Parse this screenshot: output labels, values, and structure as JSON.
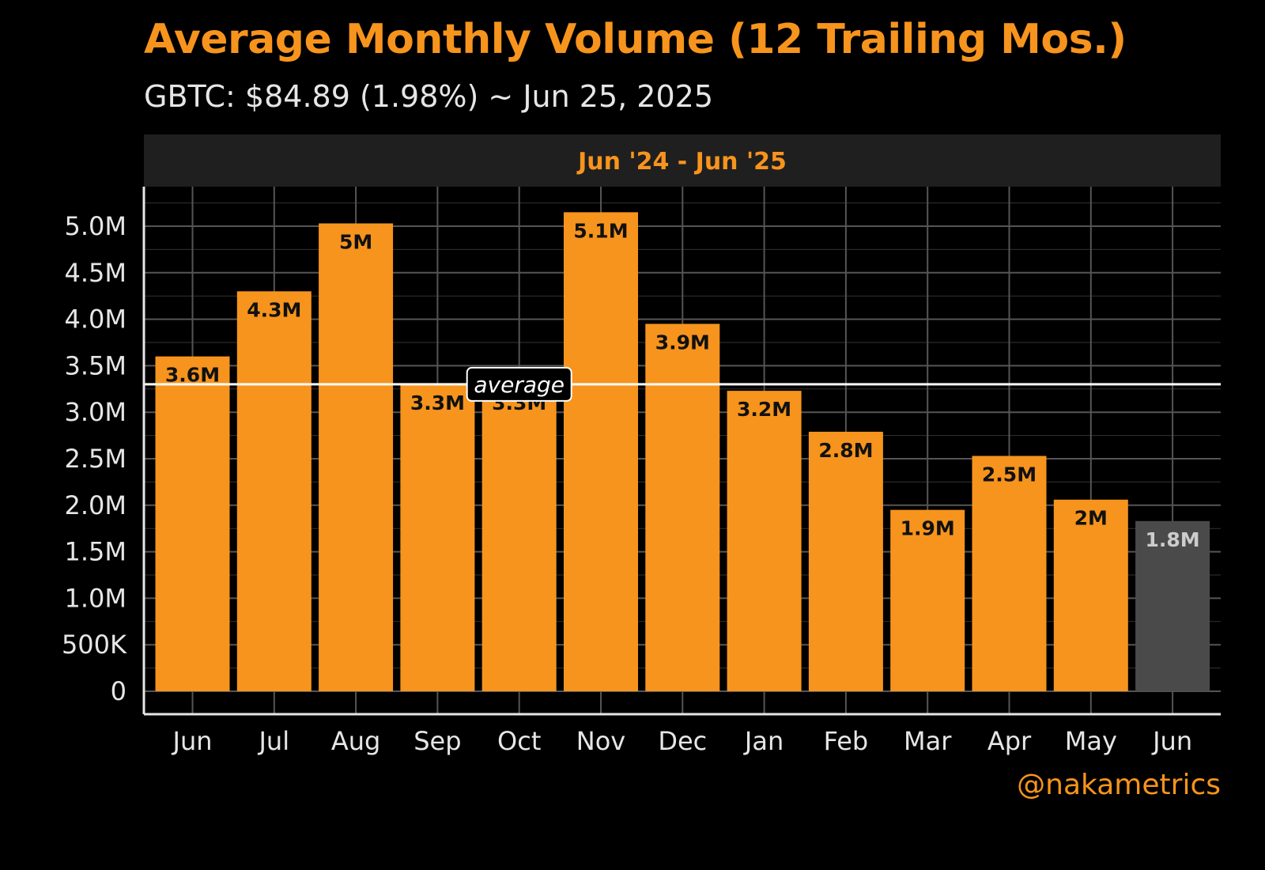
{
  "header": {
    "title": "Average Monthly Volume (12 Trailing Mos.)",
    "subtitle": "GBTC: $84.89 (1.98%) ~ Jun 25, 2025"
  },
  "watermark": "@nakametrics",
  "colors": {
    "background": "#000000",
    "bar": "#f7941d",
    "bar_current": "#4a4a4a",
    "facet_strip": "#1f1f1f",
    "grid": "#555555",
    "average_line": "#ffffff"
  },
  "chart_data": {
    "type": "bar",
    "facet_label": "Jun '24 - Jun '25",
    "categories": [
      "Jun",
      "Jul",
      "Aug",
      "Sep",
      "Oct",
      "Nov",
      "Dec",
      "Jan",
      "Feb",
      "Mar",
      "Apr",
      "May",
      "Jun"
    ],
    "values": [
      3600000,
      4300000,
      5030000,
      3300000,
      3300000,
      5150000,
      3950000,
      3230000,
      2790000,
      1950000,
      2530000,
      2060000,
      1830000
    ],
    "data_labels": [
      "3.6M",
      "4.3M",
      "5M",
      "3.3M",
      "3.3M",
      "5.1M",
      "3.9M",
      "3.2M",
      "2.8M",
      "1.9M",
      "2.5M",
      "2M",
      "1.8M"
    ],
    "current_period_index": 12,
    "average": 3300000,
    "average_label": "average",
    "ylim": [
      0,
      5400000
    ],
    "y_ticks": [
      0,
      500000,
      1000000,
      1500000,
      2000000,
      2500000,
      3000000,
      3500000,
      4000000,
      4500000,
      5000000
    ],
    "y_tick_labels": [
      "0",
      "500K",
      "1.0M",
      "1.5M",
      "2.0M",
      "2.5M",
      "3.0M",
      "3.5M",
      "4.0M",
      "4.5M",
      "5.0M"
    ],
    "grid": true,
    "legend": "none"
  }
}
